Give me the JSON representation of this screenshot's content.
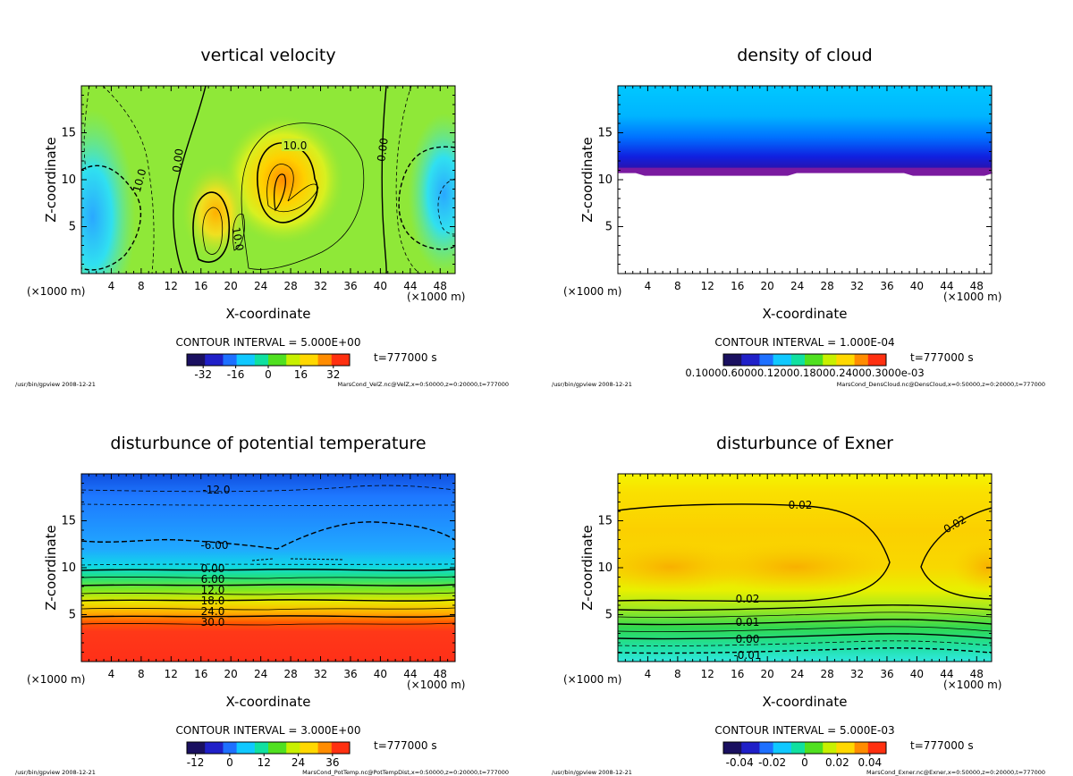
{
  "panels": [
    {
      "key": "vel",
      "title": "vertical velocity",
      "interval_text": "CONTOUR INTERVAL = 5.000E+00",
      "time_text": "t=777000 s",
      "footer_left": "/usr/bin/gpview   2008-12-21",
      "footer_right": "MarsCond_VelZ.nc@VelZ,x=0:50000,z=0:20000,t=777000",
      "colorbar_ticks": [
        "-32",
        "-16",
        "0",
        "16",
        "32"
      ],
      "contour_labels": [
        "10.0",
        "0.00",
        "10.0",
        "0.00",
        "10.0"
      ]
    },
    {
      "key": "cloud",
      "title": "density of cloud",
      "interval_text": "CONTOUR INTERVAL = 1.000E-04",
      "time_text": "t=777000 s",
      "footer_left": "/usr/bin/gpview   2008-12-21",
      "footer_right": "MarsCond_DensCloud.nc@DensCloud,x=0:50000,z=0:20000,t=777000",
      "colorbar_ticks": [
        "0.10000.60000.12000.18000.24000.3000e-03"
      ],
      "contour_labels": []
    },
    {
      "key": "temp",
      "title": "disturbunce of potential temperature",
      "interval_text": "CONTOUR INTERVAL = 3.000E+00",
      "time_text": "t=777000 s",
      "footer_left": "/usr/bin/gpview   2008-12-21",
      "footer_right": "MarsCond_PotTemp.nc@PotTempDist,x=0:50000,z=0:20000,t=777000",
      "colorbar_ticks": [
        "-12",
        "0",
        "12",
        "24",
        "36"
      ],
      "contour_labels": [
        "-12.0",
        "-6.00",
        "0.00",
        "6.00",
        "12.0",
        "18.0",
        "24.0",
        "30.0"
      ]
    },
    {
      "key": "exner",
      "title": "disturbunce of Exner",
      "interval_text": "CONTOUR INTERVAL = 5.000E-03",
      "time_text": "t=777000 s",
      "footer_left": "/usr/bin/gpview   2008-12-21",
      "footer_right": "MarsCond_Exner.nc@Exner,x=0:50000,z=0:20000,t=777000",
      "colorbar_ticks": [
        "-0.04",
        "-0.02",
        "0",
        "0.02",
        "0.04"
      ],
      "contour_labels": [
        "0.02",
        "0.02",
        "0.02",
        "0.01",
        "0.00",
        "-0.01"
      ]
    }
  ],
  "chart_data": [
    {
      "type": "heatmap",
      "title": "vertical velocity",
      "xlabel": "X-coordinate",
      "ylabel": "Z-coordinate",
      "x_unit": "(×1000 m)",
      "xlim": [
        0,
        50
      ],
      "ylim": [
        0,
        20
      ],
      "x_ticks": [
        "4",
        "8",
        "12",
        "16",
        "20",
        "24",
        "28",
        "32",
        "36",
        "40",
        "44",
        "48"
      ],
      "y_ticks": [
        "5",
        "10",
        "15"
      ],
      "colorbar": {
        "min": -40,
        "max": 40,
        "ticks": [
          -32,
          -16,
          0,
          16,
          32
        ]
      },
      "contour_interval": 5.0,
      "features": [
        {
          "kind": "updraft",
          "x": 27,
          "z": 10,
          "value": 32
        },
        {
          "kind": "updraft",
          "x": 18,
          "z": 6.5,
          "value": 25
        },
        {
          "kind": "downdraft",
          "x": 1.5,
          "z": 6,
          "value": -25
        },
        {
          "kind": "downdraft",
          "x": 48.5,
          "z": 8.5,
          "value": -14
        }
      ],
      "time": "t=777000 s"
    },
    {
      "type": "heatmap",
      "title": "density of cloud",
      "xlabel": "X-coordinate",
      "ylabel": "Z-coordinate",
      "x_unit": "(×1000 m)",
      "xlim": [
        0,
        50
      ],
      "ylim": [
        0,
        20
      ],
      "x_ticks": [
        "4",
        "8",
        "12",
        "16",
        "20",
        "24",
        "28",
        "32",
        "36",
        "40",
        "44",
        "48"
      ],
      "y_ticks": [
        "5",
        "10",
        "15"
      ],
      "colorbar": {
        "min": 0,
        "max": 0.0003
      },
      "contour_interval": 0.0001,
      "profile": [
        {
          "z": 20,
          "value": 5e-05
        },
        {
          "z": 17,
          "value": 6e-05
        },
        {
          "z": 14,
          "value": 0.00012
        },
        {
          "z": 12,
          "value": 0.00022
        },
        {
          "z": 10.8,
          "value": 0.0003
        },
        {
          "z": 10.5,
          "value": 0
        }
      ],
      "time": "t=777000 s"
    },
    {
      "type": "heatmap",
      "title": "disturbunce of potential temperature",
      "xlabel": "X-coordinate",
      "ylabel": "Z-coordinate",
      "x_unit": "(×1000 m)",
      "xlim": [
        0,
        50
      ],
      "ylim": [
        0,
        20
      ],
      "x_ticks": [
        "4",
        "8",
        "12",
        "16",
        "20",
        "24",
        "28",
        "32",
        "36",
        "40",
        "44",
        "48"
      ],
      "y_ticks": [
        "5",
        "10",
        "15"
      ],
      "colorbar": {
        "min": -15,
        "max": 42,
        "ticks": [
          -12,
          0,
          12,
          24,
          36
        ]
      },
      "contour_interval": 3.0,
      "profile": [
        {
          "z": 20,
          "value": -14
        },
        {
          "z": 18,
          "value": -12
        },
        {
          "z": 13,
          "value": -6
        },
        {
          "z": 10,
          "value": 0
        },
        {
          "z": 9,
          "value": 6
        },
        {
          "z": 8,
          "value": 12
        },
        {
          "z": 7,
          "value": 18
        },
        {
          "z": 5.8,
          "value": 24
        },
        {
          "z": 4.3,
          "value": 30
        },
        {
          "z": 0,
          "value": 36
        }
      ],
      "time": "t=777000 s"
    },
    {
      "type": "heatmap",
      "title": "disturbunce of Exner",
      "xlabel": "X-coordinate",
      "ylabel": "Z-coordinate",
      "x_unit": "(×1000 m)",
      "xlim": [
        0,
        50
      ],
      "ylim": [
        0,
        20
      ],
      "x_ticks": [
        "4",
        "8",
        "12",
        "16",
        "20",
        "24",
        "28",
        "32",
        "36",
        "40",
        "44",
        "48"
      ],
      "y_ticks": [
        "5",
        "10",
        "15"
      ],
      "colorbar": {
        "min": -0.05,
        "max": 0.05,
        "ticks": [
          -0.04,
          -0.02,
          0,
          0.02,
          0.04
        ]
      },
      "contour_interval": 0.005,
      "profile": [
        {
          "z": 20,
          "value": 0.018
        },
        {
          "z": 10,
          "value": 0.03
        },
        {
          "z": 6,
          "value": 0.02
        },
        {
          "z": 4,
          "value": 0.01
        },
        {
          "z": 2.5,
          "value": 0.0
        },
        {
          "z": 0,
          "value": -0.015
        }
      ],
      "time": "t=777000 s"
    }
  ]
}
